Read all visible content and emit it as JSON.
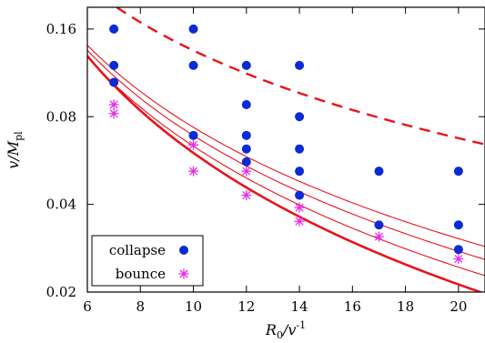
{
  "chart_data": {
    "type": "scatter",
    "xlabel": {
      "main": "R",
      "sub": "0",
      "rest": "/v",
      "sup": "-1"
    },
    "ylabel": {
      "main": "v/M",
      "sub": "pl"
    },
    "xlim": [
      6,
      21
    ],
    "ylim": [
      0.02,
      0.19
    ],
    "yscale": "log",
    "xticks": [
      6,
      8,
      10,
      12,
      14,
      16,
      18,
      20
    ],
    "yticks": [
      0.02,
      0.04,
      0.08,
      0.16
    ],
    "ytick_labels": [
      "0.02",
      "0.04",
      "0.08",
      "0.16"
    ],
    "grid": false,
    "legend_position": "bottom-left",
    "colors": {
      "collapse": "#0a2bd6",
      "bounce": "#e52ee5",
      "curve": "#e8141c"
    },
    "series": [
      {
        "name": "collapse",
        "marker": "filled-circle",
        "points": [
          [
            7,
            0.16
          ],
          [
            7,
            0.12
          ],
          [
            7,
            0.105
          ],
          [
            10,
            0.16
          ],
          [
            10,
            0.12
          ],
          [
            10,
            0.069
          ],
          [
            12,
            0.12
          ],
          [
            12,
            0.088
          ],
          [
            12,
            0.069
          ],
          [
            12,
            0.062
          ],
          [
            12,
            0.056
          ],
          [
            14,
            0.12
          ],
          [
            14,
            0.08
          ],
          [
            14,
            0.062
          ],
          [
            14,
            0.052
          ],
          [
            14,
            0.043
          ],
          [
            17,
            0.052
          ],
          [
            17,
            0.034
          ],
          [
            20,
            0.052
          ],
          [
            20,
            0.034
          ],
          [
            20,
            0.028
          ]
        ]
      },
      {
        "name": "bounce",
        "marker": "asterisk",
        "points": [
          [
            7,
            0.088
          ],
          [
            7,
            0.082
          ],
          [
            10,
            0.064
          ],
          [
            10,
            0.052
          ],
          [
            12,
            0.052
          ],
          [
            12,
            0.043
          ],
          [
            14,
            0.039
          ],
          [
            14,
            0.035
          ],
          [
            17,
            0.031
          ],
          [
            20,
            0.026
          ]
        ]
      }
    ],
    "curves": [
      {
        "style": "dashed",
        "coef": 1.35,
        "exp": 1.0
      },
      {
        "style": "solid",
        "coef": 1.9,
        "exp": 1.5
      },
      {
        "style": "thin",
        "coef": 1.52,
        "exp": 1.38
      },
      {
        "style": "thin",
        "coef": 1.44,
        "exp": 1.32
      },
      {
        "style": "thin",
        "coef": 1.37,
        "exp": 1.27
      }
    ],
    "legend": [
      {
        "label": "collapse",
        "series": "collapse"
      },
      {
        "label": "bounce",
        "series": "bounce"
      }
    ]
  }
}
